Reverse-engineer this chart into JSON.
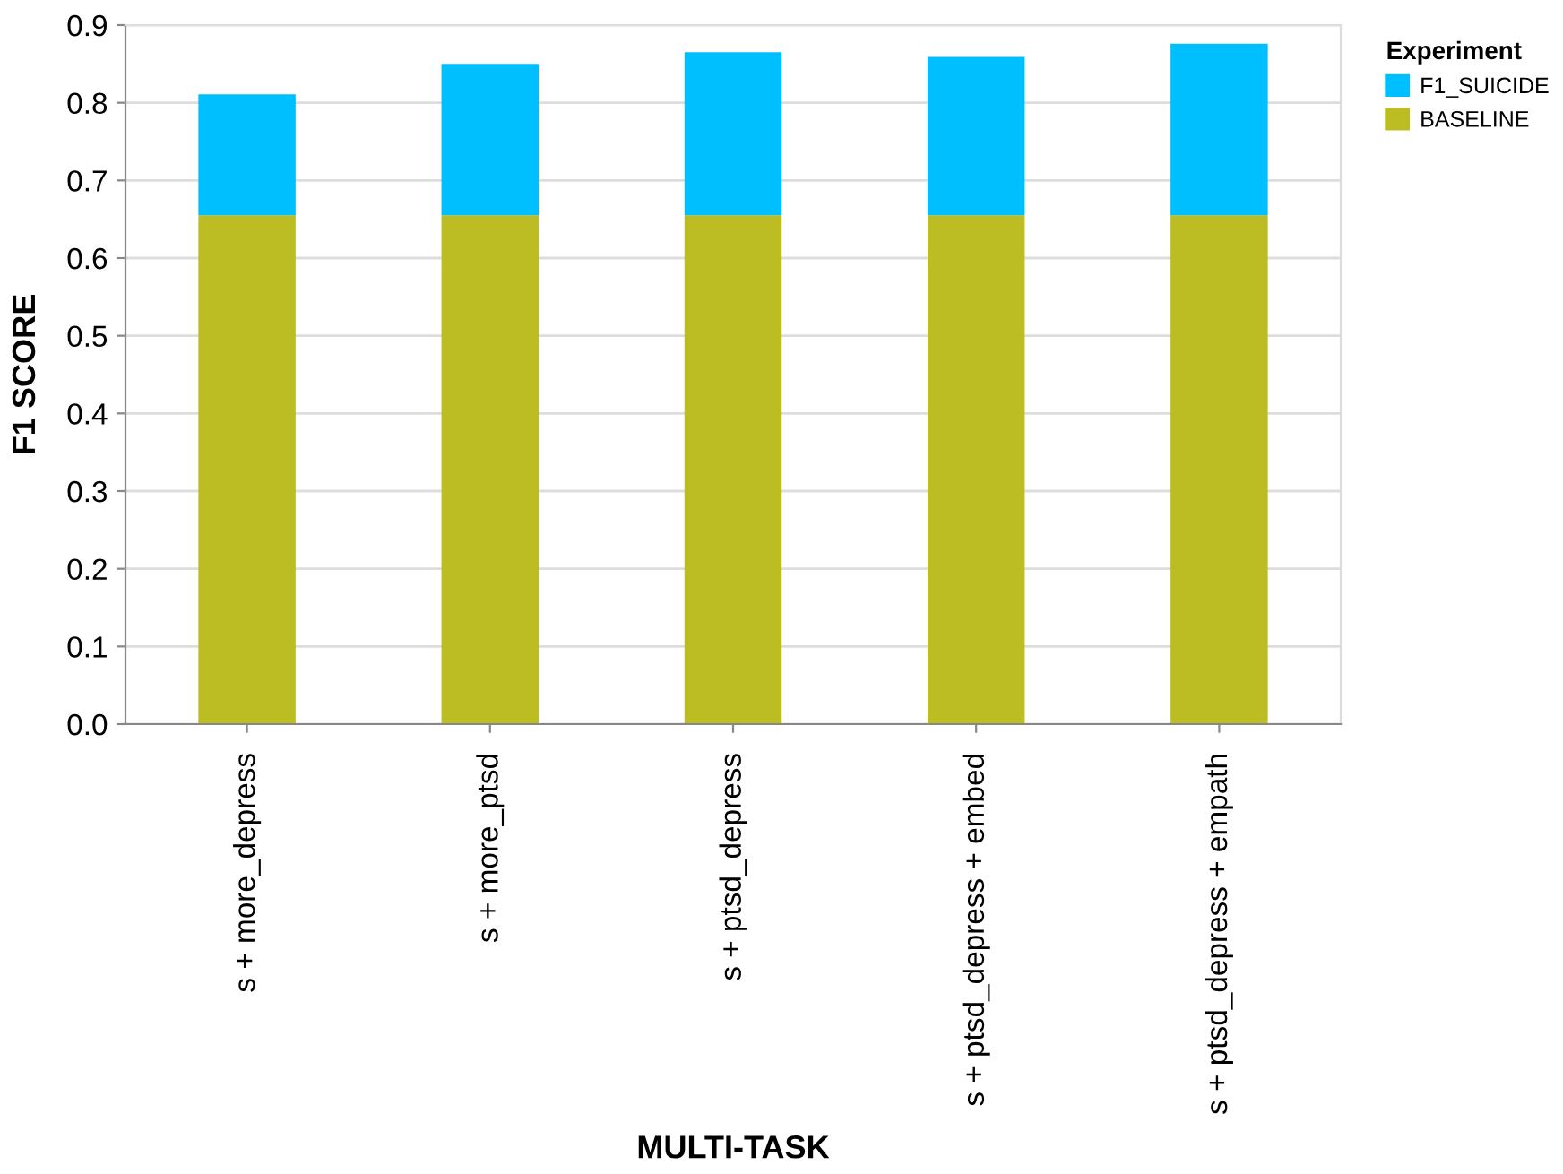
{
  "chart_data": {
    "type": "bar",
    "stacked": true,
    "xlabel": "MULTI-TASK",
    "ylabel": "F1 SCORE",
    "legend_title": "Experiment",
    "categories": [
      "s + more_depress",
      "s + more_ptsd",
      "s + ptsd_depress",
      "s + ptsd_depress + embed",
      "s + ptsd_depress + empath"
    ],
    "series": [
      {
        "name": "BASELINE",
        "color": "#bcbd22",
        "values": [
          0.655,
          0.655,
          0.655,
          0.655,
          0.655
        ]
      },
      {
        "name": "F1_SUICIDE",
        "color": "#00bfff",
        "values": [
          0.156,
          0.195,
          0.21,
          0.204,
          0.221
        ]
      }
    ],
    "ylim": [
      0,
      0.9
    ],
    "yticks": [
      {
        "value": 0,
        "label": "0.0"
      },
      0.1,
      0.2,
      0.3,
      0.4,
      0.5,
      0.6,
      0.7,
      0.8,
      0.9
    ],
    "grid": "y",
    "legend": "top right"
  }
}
